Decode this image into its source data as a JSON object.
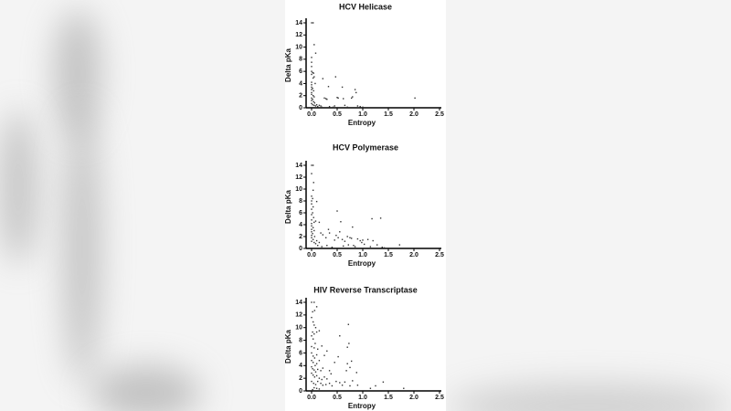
{
  "page": {
    "background": "#f4f4f4",
    "panel_color": "#ffffff",
    "point_color": "#333333"
  },
  "chart_data": [
    {
      "type": "scatter",
      "title": "HCV Helicase",
      "xlabel": "Entropy",
      "ylabel": "Delta pKa",
      "xlim": [
        0,
        2.5
      ],
      "ylim": [
        0,
        14
      ],
      "xticks": [
        "0.0",
        "0.5",
        "1.0",
        "1.5",
        "2.0",
        "2.5"
      ],
      "yticks": [
        "0",
        "2",
        "4",
        "6",
        "8",
        "10",
        "12",
        "14"
      ],
      "grid": false,
      "legend": null,
      "points": [
        [
          0.0,
          14.0
        ],
        [
          0.03,
          14.0
        ],
        [
          0.05,
          10.4
        ],
        [
          0.08,
          9.0
        ],
        [
          0.0,
          8.3
        ],
        [
          0.0,
          7.5
        ],
        [
          0.0,
          6.8
        ],
        [
          0.0,
          6.0
        ],
        [
          0.0,
          5.5
        ],
        [
          0.02,
          5.8
        ],
        [
          0.04,
          5.7
        ],
        [
          0.05,
          5.1
        ],
        [
          0.03,
          4.9
        ],
        [
          0.07,
          4.0
        ],
        [
          0.0,
          4.2
        ],
        [
          0.0,
          3.8
        ],
        [
          0.0,
          3.4
        ],
        [
          0.0,
          3.0
        ],
        [
          0.02,
          3.2
        ],
        [
          0.04,
          2.8
        ],
        [
          0.0,
          2.5
        ],
        [
          0.0,
          2.2
        ],
        [
          0.03,
          2.0
        ],
        [
          0.05,
          1.8
        ],
        [
          0.0,
          1.6
        ],
        [
          0.02,
          1.4
        ],
        [
          0.0,
          1.2
        ],
        [
          0.04,
          1.0
        ],
        [
          0.06,
          0.8
        ],
        [
          0.0,
          0.7
        ],
        [
          0.02,
          0.5
        ],
        [
          0.05,
          0.4
        ],
        [
          0.08,
          0.3
        ],
        [
          0.1,
          0.5
        ],
        [
          0.12,
          0.2
        ],
        [
          0.15,
          0.4
        ],
        [
          0.18,
          0.3
        ],
        [
          0.2,
          0.1
        ],
        [
          0.22,
          4.8
        ],
        [
          0.25,
          1.6
        ],
        [
          0.28,
          1.5
        ],
        [
          0.3,
          1.4
        ],
        [
          0.33,
          3.5
        ],
        [
          0.35,
          0.2
        ],
        [
          0.42,
          0.1
        ],
        [
          0.45,
          0.3
        ],
        [
          0.47,
          5.1
        ],
        [
          0.5,
          1.7
        ],
        [
          0.52,
          1.6
        ],
        [
          0.6,
          3.4
        ],
        [
          0.62,
          1.5
        ],
        [
          0.65,
          0.4
        ],
        [
          0.7,
          0.1
        ],
        [
          0.78,
          1.6
        ],
        [
          0.8,
          1.8
        ],
        [
          0.85,
          3.0
        ],
        [
          0.87,
          2.5
        ],
        [
          0.9,
          0.3
        ],
        [
          0.95,
          0.2
        ],
        [
          1.0,
          0.1
        ],
        [
          2.02,
          1.6
        ]
      ]
    },
    {
      "type": "scatter",
      "title": "HCV Polymerase",
      "xlabel": "Entropy",
      "ylabel": "Delta pKa",
      "xlim": [
        0,
        2.5
      ],
      "ylim": [
        0,
        14
      ],
      "xticks": [
        "0.0",
        "0.5",
        "1.0",
        "1.5",
        "2.0",
        "2.5"
      ],
      "yticks": [
        "0",
        "2",
        "4",
        "6",
        "8",
        "10",
        "12",
        "14"
      ],
      "grid": false,
      "legend": null,
      "points": [
        [
          0.0,
          14.0
        ],
        [
          0.03,
          14.0
        ],
        [
          0.0,
          12.6
        ],
        [
          0.04,
          11.1
        ],
        [
          0.03,
          9.8
        ],
        [
          0.0,
          8.8
        ],
        [
          0.02,
          8.4
        ],
        [
          0.0,
          8.0
        ],
        [
          0.1,
          7.9
        ],
        [
          0.0,
          7.5
        ],
        [
          0.03,
          7.0
        ],
        [
          0.0,
          6.6
        ],
        [
          0.02,
          6.0
        ],
        [
          0.0,
          5.7
        ],
        [
          0.04,
          5.2
        ],
        [
          0.0,
          4.8
        ],
        [
          0.05,
          4.4
        ],
        [
          0.0,
          4.2
        ],
        [
          0.08,
          4.6
        ],
        [
          0.15,
          4.4
        ],
        [
          0.0,
          3.8
        ],
        [
          0.03,
          3.5
        ],
        [
          0.0,
          3.2
        ],
        [
          0.05,
          3.0
        ],
        [
          0.0,
          2.8
        ],
        [
          0.02,
          2.5
        ],
        [
          0.0,
          2.2
        ],
        [
          0.06,
          2.0
        ],
        [
          0.0,
          1.8
        ],
        [
          0.03,
          1.5
        ],
        [
          0.0,
          1.2
        ],
        [
          0.05,
          1.0
        ],
        [
          0.08,
          0.8
        ],
        [
          0.1,
          1.3
        ],
        [
          0.12,
          0.5
        ],
        [
          0.15,
          1.0
        ],
        [
          0.18,
          2.6
        ],
        [
          0.2,
          0.3
        ],
        [
          0.22,
          2.3
        ],
        [
          0.28,
          1.8
        ],
        [
          0.3,
          0.5
        ],
        [
          0.33,
          3.2
        ],
        [
          0.35,
          2.6
        ],
        [
          0.4,
          0.2
        ],
        [
          0.45,
          1.4
        ],
        [
          0.48,
          2.2
        ],
        [
          0.5,
          6.3
        ],
        [
          0.52,
          1.8
        ],
        [
          0.55,
          2.8
        ],
        [
          0.57,
          4.5
        ],
        [
          0.6,
          1.5
        ],
        [
          0.62,
          0.4
        ],
        [
          0.65,
          1.2
        ],
        [
          0.7,
          2.0
        ],
        [
          0.72,
          0.6
        ],
        [
          0.75,
          1.8
        ],
        [
          0.78,
          1.7
        ],
        [
          0.8,
          3.6
        ],
        [
          0.82,
          0.5
        ],
        [
          0.85,
          0.3
        ],
        [
          0.9,
          1.6
        ],
        [
          0.95,
          1.3
        ],
        [
          0.98,
          1.0
        ],
        [
          1.0,
          1.4
        ],
        [
          1.03,
          0.7
        ],
        [
          1.1,
          1.5
        ],
        [
          1.15,
          0.3
        ],
        [
          1.18,
          5.0
        ],
        [
          1.2,
          1.3
        ],
        [
          1.28,
          0.6
        ],
        [
          1.35,
          5.1
        ],
        [
          1.38,
          0.2
        ],
        [
          1.42,
          0.1
        ],
        [
          1.72,
          0.6
        ]
      ]
    },
    {
      "type": "scatter",
      "title": "HIV Reverse Transcriptase",
      "xlabel": "Entropy",
      "ylabel": "Delta pKa",
      "xlim": [
        0,
        2.5
      ],
      "ylim": [
        0,
        14
      ],
      "xticks": [
        "0.0",
        "0.5",
        "1.0",
        "1.5",
        "2.0",
        "2.5"
      ],
      "yticks": [
        "0",
        "2",
        "4",
        "6",
        "8",
        "10",
        "12",
        "14"
      ],
      "grid": false,
      "legend": null,
      "points": [
        [
          0.0,
          14.0
        ],
        [
          0.05,
          14.0
        ],
        [
          0.1,
          13.3
        ],
        [
          0.02,
          12.5
        ],
        [
          0.06,
          12.7
        ],
        [
          0.0,
          11.6
        ],
        [
          0.03,
          10.9
        ],
        [
          0.05,
          10.4
        ],
        [
          0.08,
          10.0
        ],
        [
          0.02,
          9.3
        ],
        [
          0.05,
          9.0
        ],
        [
          0.1,
          9.3
        ],
        [
          0.15,
          9.5
        ],
        [
          0.0,
          8.7
        ],
        [
          0.03,
          8.2
        ],
        [
          0.07,
          7.5
        ],
        [
          0.0,
          7.0
        ],
        [
          0.05,
          6.8
        ],
        [
          0.12,
          6.6
        ],
        [
          0.2,
          7.1
        ],
        [
          0.0,
          6.0
        ],
        [
          0.03,
          5.5
        ],
        [
          0.06,
          5.2
        ],
        [
          0.1,
          5.7
        ],
        [
          0.25,
          5.6
        ],
        [
          0.3,
          6.3
        ],
        [
          0.0,
          4.8
        ],
        [
          0.03,
          4.5
        ],
        [
          0.07,
          4.0
        ],
        [
          0.1,
          4.3
        ],
        [
          0.15,
          4.8
        ],
        [
          0.0,
          3.8
        ],
        [
          0.02,
          3.5
        ],
        [
          0.05,
          3.3
        ],
        [
          0.08,
          3.0
        ],
        [
          0.12,
          3.4
        ],
        [
          0.18,
          3.2
        ],
        [
          0.22,
          3.6
        ],
        [
          0.0,
          2.8
        ],
        [
          0.03,
          2.5
        ],
        [
          0.06,
          2.2
        ],
        [
          0.1,
          2.4
        ],
        [
          0.15,
          2.0
        ],
        [
          0.2,
          1.8
        ],
        [
          0.25,
          2.2
        ],
        [
          0.3,
          1.9
        ],
        [
          0.0,
          1.5
        ],
        [
          0.04,
          1.2
        ],
        [
          0.08,
          1.0
        ],
        [
          0.12,
          1.5
        ],
        [
          0.18,
          1.2
        ],
        [
          0.22,
          0.9
        ],
        [
          0.28,
          1.0
        ],
        [
          0.35,
          3.2
        ],
        [
          0.38,
          2.7
        ],
        [
          0.35,
          1.2
        ],
        [
          0.4,
          0.8
        ],
        [
          0.45,
          4.5
        ],
        [
          0.48,
          1.5
        ],
        [
          0.52,
          5.4
        ],
        [
          0.55,
          8.7
        ],
        [
          0.55,
          1.3
        ],
        [
          0.6,
          0.9
        ],
        [
          0.65,
          1.4
        ],
        [
          0.68,
          3.2
        ],
        [
          0.7,
          6.9
        ],
        [
          0.7,
          4.3
        ],
        [
          0.72,
          10.5
        ],
        [
          0.73,
          7.5
        ],
        [
          0.75,
          3.7
        ],
        [
          0.75,
          0.8
        ],
        [
          0.78,
          4.7
        ],
        [
          0.8,
          1.6
        ],
        [
          0.88,
          2.9
        ],
        [
          0.9,
          0.9
        ],
        [
          1.15,
          0.4
        ],
        [
          1.25,
          0.8
        ],
        [
          1.4,
          1.4
        ],
        [
          1.8,
          0.4
        ],
        [
          0.05,
          0.5
        ],
        [
          0.1,
          0.4
        ],
        [
          0.15,
          0.3
        ],
        [
          0.02,
          0.2
        ]
      ]
    }
  ]
}
